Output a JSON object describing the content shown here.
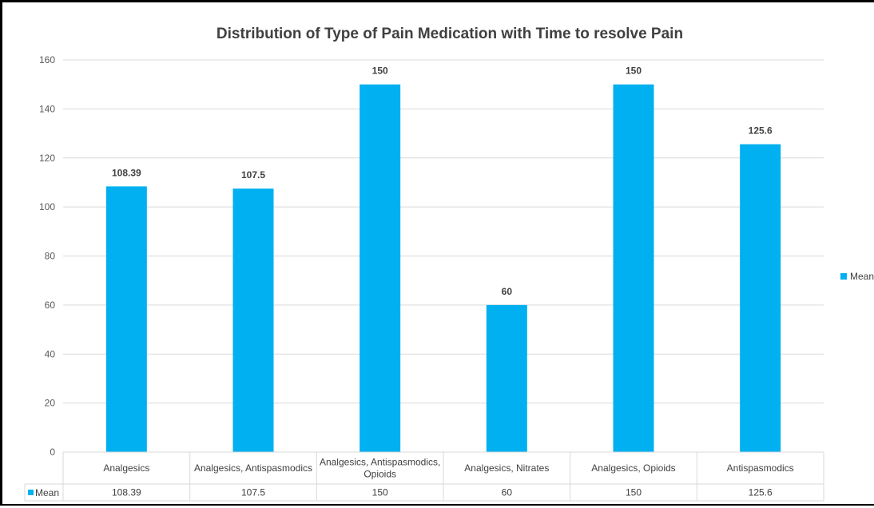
{
  "chart_data": {
    "type": "bar",
    "title": "Distribution of Type of Pain Medication with Time to resolve Pain",
    "categories": [
      [
        "Analgesics"
      ],
      [
        "Analgesics, Antispasmodics"
      ],
      [
        "Analgesics, Antispasmodics,",
        "Opioids"
      ],
      [
        "Analgesics, Nitrates"
      ],
      [
        "Analgesics, Opioids"
      ],
      [
        "Antispasmodics"
      ]
    ],
    "series": [
      {
        "name": "Mean",
        "values": [
          108.39,
          107.5,
          150,
          60,
          150,
          125.6
        ],
        "value_labels": [
          "108.39",
          "107.5",
          "150",
          "60",
          "150",
          "125.6"
        ],
        "color": "#00b0f0"
      }
    ],
    "ylim": [
      0,
      160
    ],
    "yticks": [
      "0",
      "20",
      "40",
      "60",
      "80",
      "100",
      "120",
      "140",
      "160"
    ],
    "grid": true,
    "legend": {
      "position": "right",
      "label": "Mean"
    },
    "data_table": true,
    "colors": {
      "bar": "#00b0f0",
      "grid": "#d9d9d9",
      "text": "#404040"
    }
  }
}
